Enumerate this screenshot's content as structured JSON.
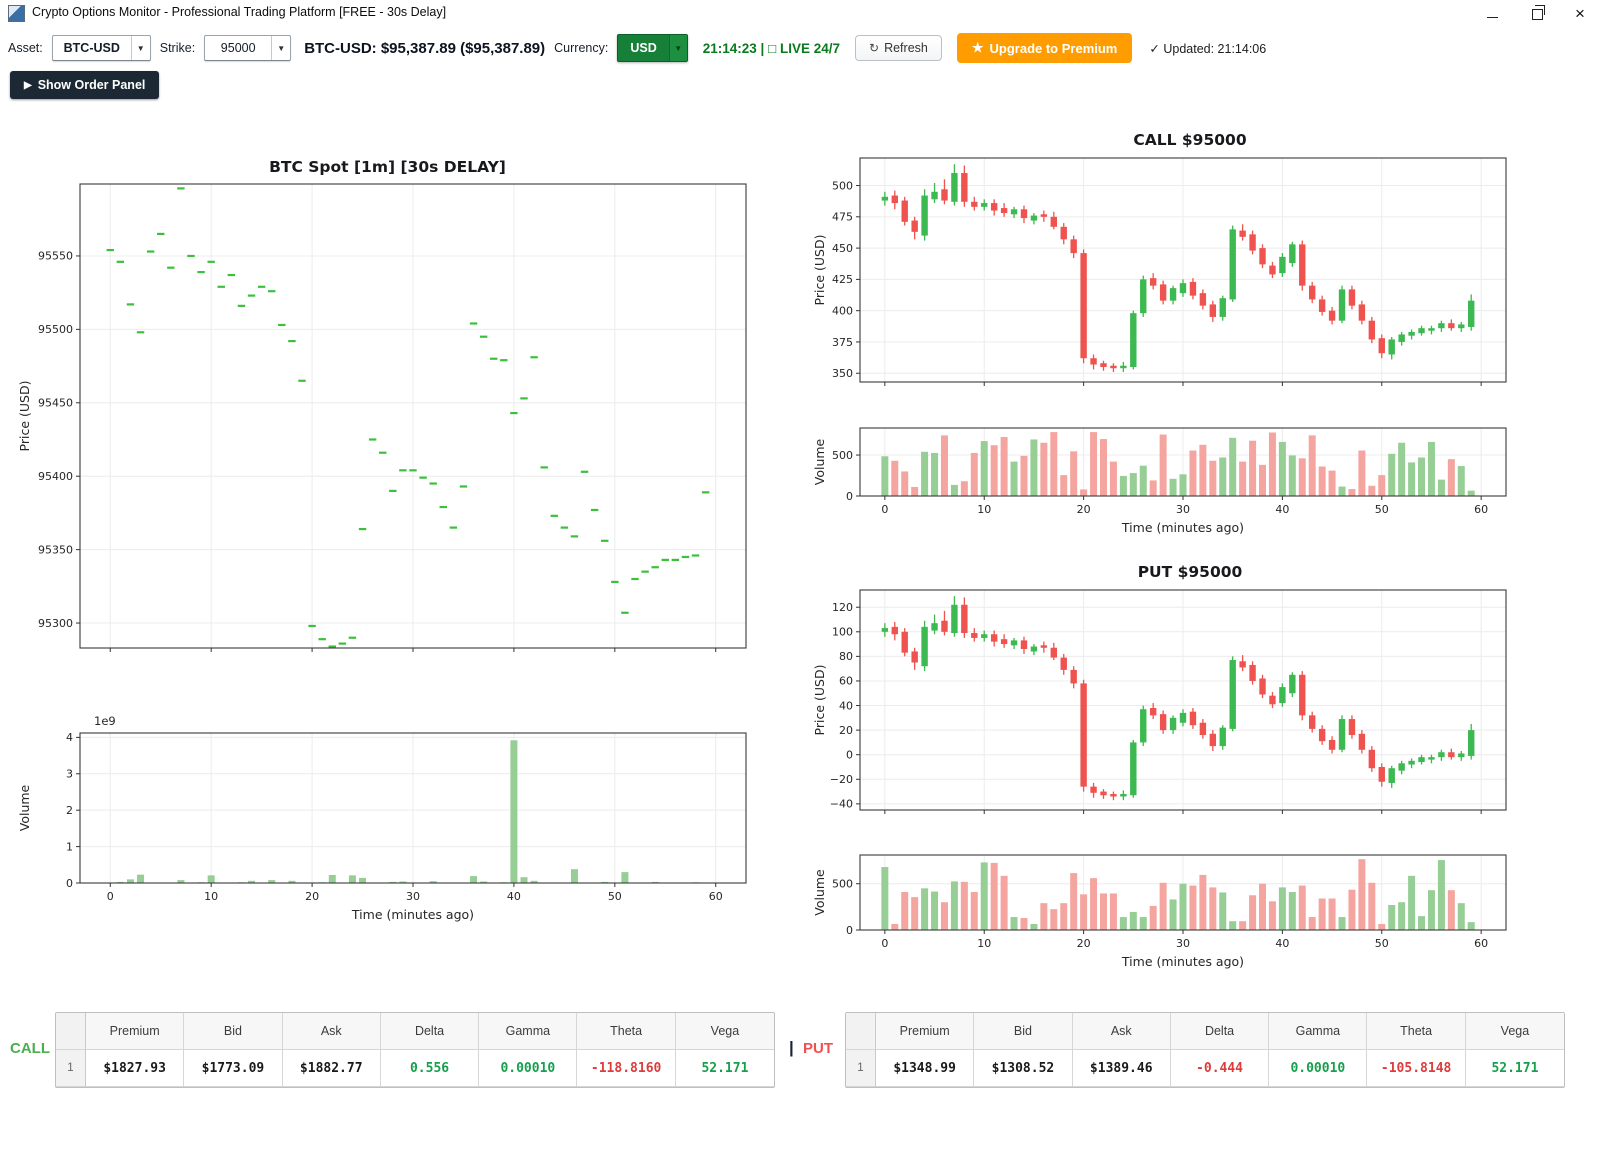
{
  "window": {
    "title": "Crypto Options Monitor - Professional Trading Platform [FREE - 30s Delay]"
  },
  "toolbar": {
    "asset_label": "Asset:",
    "asset_value": "BTC-USD",
    "strike_label": "Strike:",
    "strike_value": "95000",
    "price_display": "BTC-USD: $95,387.89 ($95,387.89)",
    "currency_label": "Currency:",
    "currency_value": "USD",
    "dropdown_arrow": "▼",
    "clock_display": "21:14:23 | □ LIVE 24/7",
    "refresh_icon": "↻",
    "refresh_label": "Refresh",
    "upgrade_icon": "★",
    "upgrade_label": "Upgrade to Premium",
    "updated_icon": "✓",
    "updated_label": "Updated: 21:14:06",
    "accent_green": "#178038",
    "accent_orange": "#ff9d00"
  },
  "order_panel": {
    "icon": "▶",
    "label": "Show Order Panel"
  },
  "chart_data": [
    {
      "id": "spot-price",
      "type": "scatter",
      "title": "BTC Spot [1m] [30s DELAY]",
      "ylabel": "Price (USD)",
      "marker": "dash",
      "marker_color": "#3cc03c",
      "xlim": [
        -3,
        63
      ],
      "ylim": [
        95283,
        95599
      ],
      "yticks": [
        95300,
        95350,
        95400,
        95450,
        95500,
        95550
      ],
      "xticks": [
        0,
        10,
        20,
        30,
        40,
        50,
        60
      ],
      "show_xtick_labels": false,
      "values": [
        95554,
        95546,
        95517,
        95498,
        95553,
        95565,
        95542,
        95596,
        95550,
        95539,
        95546,
        95529,
        95537,
        95516,
        95523,
        95529,
        95526,
        95503,
        95492,
        95465,
        95298,
        95289,
        95284,
        95286,
        95290,
        95364,
        95425,
        95416,
        95390,
        95404,
        95404,
        95399,
        95395,
        95379,
        95365,
        95393,
        95504,
        95495,
        95480,
        95479,
        95443,
        95453,
        95481,
        95406,
        95373,
        95365,
        95359,
        95403,
        95377,
        95356,
        95328,
        95307,
        95330,
        95335,
        95338,
        95343,
        95343,
        95345,
        95346,
        95389
      ]
    },
    {
      "id": "spot-volume",
      "type": "bar",
      "title": "",
      "ylabel": "Volume",
      "xlabel": "Time (minutes ago)",
      "offset_label": "1e9",
      "bar_color": "#96ce96",
      "xlim": [
        -3,
        63
      ],
      "ylim": [
        0,
        4.12
      ],
      "yticks": [
        0,
        1,
        2,
        3,
        4
      ],
      "xticks": [
        0,
        10,
        20,
        30,
        40,
        50,
        60
      ],
      "show_xtick_labels": true,
      "values": [
        0.01,
        0.03,
        0.1,
        0.23,
        0.01,
        0.01,
        0.01,
        0.08,
        0.01,
        0.02,
        0.21,
        0.01,
        0.01,
        0.02,
        0.06,
        0.01,
        0.08,
        0.01,
        0.06,
        0.01,
        0.01,
        0.02,
        0.22,
        0.01,
        0.21,
        0.14,
        0.01,
        0.01,
        0.03,
        0.04,
        0.01,
        0.01,
        0.05,
        0.01,
        0.01,
        0.01,
        0.19,
        0.04,
        0.01,
        0.02,
        3.92,
        0.16,
        0.06,
        0.01,
        0.01,
        0.01,
        0.38,
        0.01,
        0.01,
        0.03,
        0.01,
        0.3,
        0.01,
        0.01,
        0.03,
        0.01,
        0.01,
        0.01,
        0.02,
        0.01
      ]
    },
    {
      "id": "call-price",
      "type": "candlestick",
      "title": "CALL $95000",
      "ylabel": "Price (USD)",
      "up_color": "#3cb950",
      "down_color": "#ef5350",
      "xlim": [
        -2.5,
        62.5
      ],
      "ylim": [
        343,
        522
      ],
      "yticks": [
        350,
        375,
        400,
        425,
        450,
        475,
        500
      ],
      "xticks": [
        0,
        10,
        20,
        30,
        40,
        50,
        60
      ],
      "show_xtick_labels": false,
      "ohlc": [
        [
          488,
          495,
          484,
          491
        ],
        [
          492,
          496,
          481,
          486
        ],
        [
          488,
          491,
          468,
          471
        ],
        [
          472,
          475,
          457,
          463
        ],
        [
          460,
          497,
          456,
          492
        ],
        [
          489,
          502,
          486,
          495
        ],
        [
          497,
          505,
          485,
          488
        ],
        [
          487,
          517,
          484,
          510
        ],
        [
          510,
          516,
          483,
          487
        ],
        [
          487,
          491,
          480,
          483
        ],
        [
          483,
          489,
          480,
          486
        ],
        [
          486,
          489,
          476,
          480
        ],
        [
          482,
          486,
          475,
          478
        ],
        [
          477,
          483,
          474,
          481
        ],
        [
          481,
          484,
          470,
          474
        ],
        [
          472,
          478,
          469,
          476
        ],
        [
          477,
          480,
          471,
          475
        ],
        [
          475,
          479,
          465,
          467
        ],
        [
          467,
          470,
          453,
          457
        ],
        [
          457,
          460,
          442,
          446
        ],
        [
          446,
          449,
          358,
          362
        ],
        [
          362,
          365,
          353,
          357
        ],
        [
          358,
          360,
          352,
          355
        ],
        [
          356,
          358,
          351,
          354
        ],
        [
          354,
          359,
          351,
          356
        ],
        [
          355,
          400,
          353,
          398
        ],
        [
          398,
          428,
          395,
          425
        ],
        [
          426,
          430,
          417,
          420
        ],
        [
          421,
          424,
          405,
          408
        ],
        [
          408,
          420,
          405,
          418
        ],
        [
          414,
          425,
          411,
          422
        ],
        [
          423,
          426,
          409,
          412
        ],
        [
          414,
          417,
          401,
          404
        ],
        [
          405,
          408,
          391,
          395
        ],
        [
          395,
          412,
          392,
          410
        ],
        [
          409,
          468,
          407,
          465
        ],
        [
          464,
          469,
          456,
          459
        ],
        [
          461,
          464,
          445,
          448
        ],
        [
          450,
          453,
          434,
          437
        ],
        [
          436,
          439,
          426,
          429
        ],
        [
          430,
          446,
          427,
          443
        ],
        [
          438,
          455,
          435,
          453
        ],
        [
          453,
          456,
          416,
          420
        ],
        [
          420,
          423,
          406,
          409
        ],
        [
          409,
          412,
          396,
          399
        ],
        [
          400,
          403,
          389,
          392
        ],
        [
          392,
          420,
          390,
          417
        ],
        [
          417,
          420,
          401,
          404
        ],
        [
          405,
          408,
          389,
          392
        ],
        [
          392,
          395,
          374,
          377
        ],
        [
          378,
          381,
          362,
          366
        ],
        [
          365,
          379,
          361,
          377
        ],
        [
          375,
          383,
          372,
          381
        ],
        [
          380,
          385,
          377,
          383
        ],
        [
          382,
          388,
          380,
          386
        ],
        [
          384,
          388,
          381,
          386
        ],
        [
          386,
          392,
          383,
          390
        ],
        [
          390,
          393,
          384,
          386
        ],
        [
          386,
          391,
          383,
          389
        ],
        [
          387,
          413,
          384,
          408
        ]
      ]
    },
    {
      "id": "call-volume",
      "type": "bar",
      "title": "",
      "ylabel": "Volume",
      "xlabel": "Time (minutes ago)",
      "up_color": "#96ce96",
      "down_color": "#f5a5a0",
      "candle_ref": 2,
      "xlim": [
        -2.5,
        62.5
      ],
      "ylim": [
        0,
        830
      ],
      "yticks": [
        0,
        500
      ],
      "xticks": [
        0,
        10,
        20,
        30,
        40,
        50,
        60
      ],
      "show_xtick_labels": true,
      "values": [
        485,
        430,
        300,
        110,
        540,
        525,
        740,
        135,
        180,
        525,
        670,
        620,
        720,
        420,
        490,
        690,
        650,
        780,
        255,
        545,
        80,
        780,
        695,
        420,
        245,
        280,
        370,
        190,
        750,
        210,
        265,
        555,
        625,
        430,
        470,
        710,
        420,
        675,
        380,
        775,
        660,
        495,
        460,
        740,
        360,
        310,
        115,
        85,
        555,
        125,
        255,
        515,
        650,
        410,
        470,
        660,
        200,
        450,
        365,
        65
      ]
    },
    {
      "id": "put-price",
      "type": "candlestick",
      "title": "PUT $95000",
      "ylabel": "Price (USD)",
      "up_color": "#3cb950",
      "down_color": "#ef5350",
      "xlim": [
        -2.5,
        62.5
      ],
      "ylim": [
        -45,
        134
      ],
      "yticks": [
        -40,
        -20,
        0,
        20,
        40,
        60,
        80,
        100,
        120
      ],
      "xticks": [
        0,
        10,
        20,
        30,
        40,
        50,
        60
      ],
      "show_xtick_labels": false,
      "ohlc": [
        [
          100,
          107,
          96,
          103
        ],
        [
          104,
          108,
          93,
          98
        ],
        [
          100,
          103,
          80,
          83
        ],
        [
          84,
          87,
          69,
          75
        ],
        [
          72,
          109,
          68,
          104
        ],
        [
          101,
          114,
          98,
          107
        ],
        [
          109,
          117,
          97,
          100
        ],
        [
          99,
          129,
          96,
          122
        ],
        [
          122,
          128,
          95,
          99
        ],
        [
          99,
          103,
          92,
          95
        ],
        [
          95,
          101,
          92,
          98
        ],
        [
          98,
          101,
          88,
          92
        ],
        [
          94,
          98,
          87,
          90
        ],
        [
          89,
          95,
          86,
          93
        ],
        [
          93,
          96,
          82,
          86
        ],
        [
          84,
          90,
          81,
          88
        ],
        [
          89,
          92,
          83,
          87
        ],
        [
          87,
          91,
          77,
          79
        ],
        [
          79,
          82,
          65,
          69
        ],
        [
          69,
          72,
          54,
          58
        ],
        [
          58,
          61,
          -30,
          -26
        ],
        [
          -26,
          -23,
          -35,
          -31
        ],
        [
          -30,
          -28,
          -36,
          -33
        ],
        [
          -32,
          -30,
          -37,
          -34
        ],
        [
          -34,
          -29,
          -37,
          -32
        ],
        [
          -33,
          12,
          -35,
          10
        ],
        [
          10,
          40,
          7,
          37
        ],
        [
          38,
          42,
          29,
          32
        ],
        [
          33,
          36,
          17,
          20
        ],
        [
          20,
          32,
          17,
          30
        ],
        [
          26,
          37,
          23,
          34
        ],
        [
          35,
          38,
          21,
          24
        ],
        [
          26,
          29,
          13,
          16
        ],
        [
          17,
          20,
          3,
          7
        ],
        [
          7,
          24,
          4,
          22
        ],
        [
          21,
          80,
          19,
          77
        ],
        [
          76,
          81,
          68,
          71
        ],
        [
          73,
          76,
          57,
          60
        ],
        [
          62,
          65,
          46,
          49
        ],
        [
          48,
          51,
          38,
          41
        ],
        [
          42,
          58,
          39,
          55
        ],
        [
          50,
          67,
          47,
          65
        ],
        [
          65,
          68,
          28,
          32
        ],
        [
          32,
          35,
          18,
          21
        ],
        [
          21,
          24,
          8,
          11
        ],
        [
          12,
          15,
          1,
          4
        ],
        [
          4,
          32,
          2,
          29
        ],
        [
          29,
          32,
          13,
          16
        ],
        [
          17,
          20,
          1,
          4
        ],
        [
          4,
          7,
          -14,
          -11
        ],
        [
          -10,
          -7,
          -26,
          -22
        ],
        [
          -23,
          -9,
          -27,
          -11
        ],
        [
          -13,
          -5,
          -16,
          -7
        ],
        [
          -8,
          -3,
          -11,
          -5
        ],
        [
          -6,
          0,
          -8,
          -2
        ],
        [
          -4,
          0,
          -7,
          -2
        ],
        [
          -2,
          4,
          -5,
          2
        ],
        [
          2,
          5,
          -4,
          -2
        ],
        [
          -2,
          3,
          -5,
          1
        ],
        [
          -1,
          25,
          -4,
          20
        ]
      ]
    },
    {
      "id": "put-volume",
      "type": "bar",
      "title": "",
      "ylabel": "Volume",
      "xlabel": "Time (minutes ago)",
      "up_color": "#96ce96",
      "down_color": "#f5a5a0",
      "candle_ref": 4,
      "xlim": [
        -2.5,
        62.5
      ],
      "ylim": [
        0,
        810
      ],
      "yticks": [
        0,
        500
      ],
      "xticks": [
        0,
        10,
        20,
        30,
        40,
        50,
        60
      ],
      "show_xtick_labels": true,
      "values": [
        680,
        65,
        410,
        355,
        450,
        415,
        300,
        525,
        520,
        410,
        730,
        725,
        585,
        140,
        130,
        65,
        290,
        225,
        290,
        615,
        385,
        560,
        395,
        395,
        140,
        195,
        140,
        260,
        510,
        330,
        500,
        480,
        595,
        460,
        405,
        95,
        95,
        375,
        500,
        310,
        460,
        410,
        480,
        140,
        340,
        340,
        140,
        435,
        765,
        510,
        65,
        270,
        300,
        585,
        150,
        430,
        755,
        430,
        290,
        85
      ]
    }
  ],
  "tables": {
    "separator": "|",
    "call": {
      "label": "CALL",
      "headers": [
        "",
        "Premium",
        "Bid",
        "Ask",
        "Delta",
        "Gamma",
        "Theta",
        "Vega"
      ],
      "row": [
        "1",
        "$1827.93",
        "$1773.09",
        "$1882.77",
        "0.556",
        "0.00010",
        "-118.8160",
        "52.171"
      ]
    },
    "put": {
      "label": "PUT",
      "headers": [
        "",
        "Premium",
        "Bid",
        "Ask",
        "Delta",
        "Gamma",
        "Theta",
        "Vega"
      ],
      "row": [
        "1",
        "$1348.99",
        "$1308.52",
        "$1389.46",
        "-0.444",
        "0.00010",
        "-105.8148",
        "52.171"
      ]
    }
  },
  "colors": {
    "candle_up": "#3cb950",
    "candle_down": "#ef5350",
    "vol_up": "#96ce96",
    "vol_down": "#f5a5a0",
    "spot_marker": "#3cc03c",
    "spot_volume": "#96ce96",
    "positive": "#15a04c",
    "negative": "#dd3c3c"
  }
}
